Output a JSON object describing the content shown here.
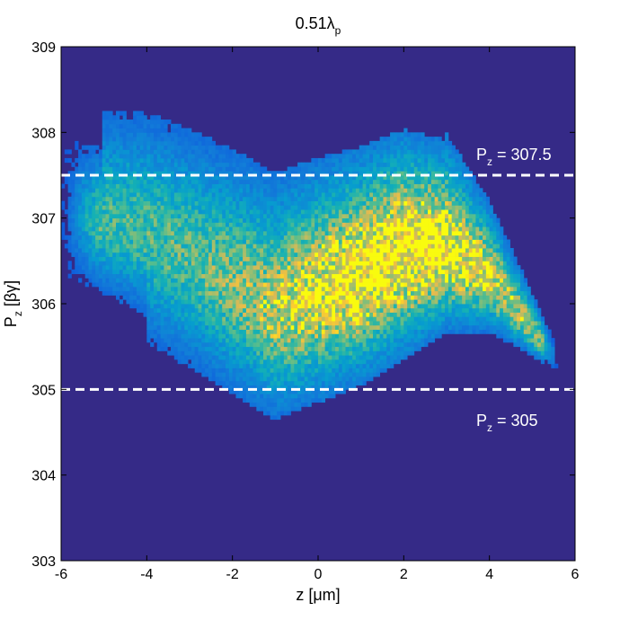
{
  "chart_data": {
    "type": "heatmap",
    "title": {
      "main": "0.51λ",
      "sub": "p"
    },
    "xlabel": "z [μm]",
    "ylabel": {
      "main": "P",
      "sub": "z",
      "rest": " [βγ]"
    },
    "xlim": [
      -6,
      6
    ],
    "ylim": [
      303,
      309
    ],
    "xticks": [
      "-6",
      "-4",
      "-2",
      "0",
      "2",
      "4",
      "6"
    ],
    "yticks": [
      "303",
      "304",
      "305",
      "306",
      "307",
      "308",
      "309"
    ],
    "grid": false,
    "colormap": "parula",
    "background_color": "#352A87",
    "distribution": {
      "description_units": "z in μm, Pz in βγ",
      "z_range": [
        -6.0,
        5.6
      ],
      "pz_range": [
        304.9,
        308.2
      ],
      "ridge": [
        {
          "z": -5.5,
          "pz": 307.0
        },
        {
          "z": -4.0,
          "pz": 306.8
        },
        {
          "z": -2.0,
          "pz": 306.2
        },
        {
          "z": -1.0,
          "pz": 305.9
        },
        {
          "z": 0.0,
          "pz": 306.1
        },
        {
          "z": 1.0,
          "pz": 306.3
        },
        {
          "z": 2.0,
          "pz": 306.6
        },
        {
          "z": 3.0,
          "pz": 306.6
        },
        {
          "z": 4.0,
          "pz": 306.3
        },
        {
          "z": 4.5,
          "pz": 306.0
        },
        {
          "z": 5.0,
          "pz": 305.7
        },
        {
          "z": 5.5,
          "pz": 305.4
        }
      ],
      "peak_region": {
        "z": [
          0.5,
          3.5
        ],
        "pz": [
          306.0,
          307.0
        ]
      }
    },
    "reference_lines": [
      {
        "y": 307.5,
        "style": "dashed",
        "color": "#ffffff",
        "label": {
          "main": "P",
          "sub": "z",
          "rest": " = 307.5"
        }
      },
      {
        "y": 305,
        "style": "dashed",
        "color": "#ffffff",
        "label": {
          "main": "P",
          "sub": "z",
          "rest": " = 305"
        }
      }
    ]
  }
}
